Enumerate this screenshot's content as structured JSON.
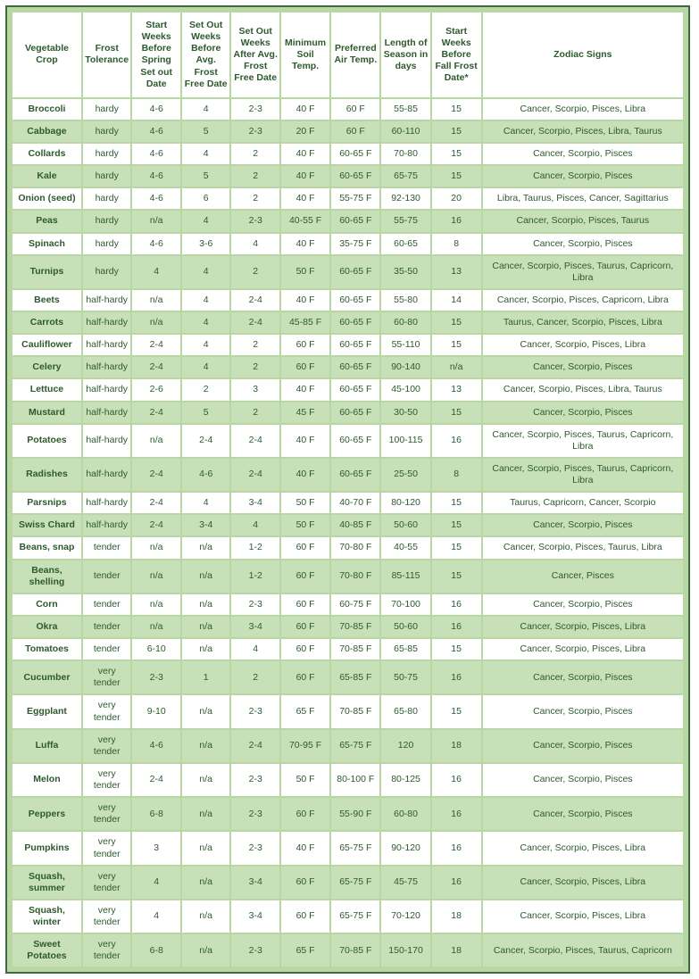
{
  "table": {
    "columns": [
      "Vegetable Crop",
      "Frost Tolerance",
      "Start Weeks Before Spring Set out Date",
      "Set Out Weeks Before Avg. Frost Free Date",
      "Set Out Weeks After Avg. Frost Free Date",
      "Minimum Soil Temp.",
      "Preferred Air Temp.",
      "Length of Season in days",
      "Start Weeks Before Fall Frost Date*",
      "Zodiac Signs"
    ],
    "column_widths_pct": [
      10.5,
      7.3,
      7.3,
      7.3,
      7.3,
      7.4,
      7.4,
      7.4,
      7.5,
      30.6
    ],
    "header_bg": "#ffffff",
    "row_bg": "#ffffff",
    "row_alt_bg": "#c8e0b8",
    "wrap_bg": "#b9d7a5",
    "border_color": "#3d6b3d",
    "text_color": "#2d5a2d",
    "font_size_pt": 8,
    "header_font_size_pt": 8,
    "rows": [
      [
        "Broccoli",
        "hardy",
        "4-6",
        "4",
        "2-3",
        "40 F",
        "60 F",
        "55-85",
        "15",
        "Cancer, Scorpio, Pisces, Libra"
      ],
      [
        "Cabbage",
        "hardy",
        "4-6",
        "5",
        "2-3",
        "20 F",
        "60 F",
        "60-110",
        "15",
        "Cancer, Scorpio, Pisces, Libra, Taurus"
      ],
      [
        "Collards",
        "hardy",
        "4-6",
        "4",
        "2",
        "40 F",
        "60-65 F",
        "70-80",
        "15",
        "Cancer, Scorpio, Pisces"
      ],
      [
        "Kale",
        "hardy",
        "4-6",
        "5",
        "2",
        "40 F",
        "60-65 F",
        "65-75",
        "15",
        "Cancer, Scorpio, Pisces"
      ],
      [
        "Onion (seed)",
        "hardy",
        "4-6",
        "6",
        "2",
        "40 F",
        "55-75 F",
        "92-130",
        "20",
        "Libra, Taurus, Pisces, Cancer, Sagittarius"
      ],
      [
        "Peas",
        "hardy",
        "n/a",
        "4",
        "2-3",
        "40-55 F",
        "60-65 F",
        "55-75",
        "16",
        "Cancer, Scorpio, Pisces, Taurus"
      ],
      [
        "Spinach",
        "hardy",
        "4-6",
        "3-6",
        "4",
        "40 F",
        "35-75 F",
        "60-65",
        "8",
        "Cancer, Scorpio, Pisces"
      ],
      [
        "Turnips",
        "hardy",
        "4",
        "4",
        "2",
        "50 F",
        "60-65 F",
        "35-50",
        "13",
        "Cancer, Scorpio, Pisces, Taurus, Capricorn, Libra"
      ],
      [
        "Beets",
        "half-hardy",
        "n/a",
        "4",
        "2-4",
        "40 F",
        "60-65 F",
        "55-80",
        "14",
        "Cancer, Scorpio, Pisces, Capricorn, Libra"
      ],
      [
        "Carrots",
        "half-hardy",
        "n/a",
        "4",
        "2-4",
        "45-85 F",
        "60-65 F",
        "60-80",
        "15",
        "Taurus, Cancer, Scorpio,  Pisces, Libra"
      ],
      [
        "Cauliflower",
        "half-hardy",
        "2-4",
        "4",
        "2",
        "60 F",
        "60-65 F",
        "55-110",
        "15",
        "Cancer, Scorpio, Pisces, Libra"
      ],
      [
        "Celery",
        "half-hardy",
        "2-4",
        "4",
        "2",
        "60 F",
        "60-65 F",
        "90-140",
        "n/a",
        "Cancer, Scorpio, Pisces"
      ],
      [
        "Lettuce",
        "half-hardy",
        "2-6",
        "2",
        "3",
        "40 F",
        "60-65 F",
        "45-100",
        "13",
        "Cancer, Scorpio, Pisces, Libra, Taurus"
      ],
      [
        "Mustard",
        "half-hardy",
        "2-4",
        "5",
        "2",
        "45 F",
        "60-65 F",
        "30-50",
        "15",
        "Cancer, Scorpio, Pisces"
      ],
      [
        "Potatoes",
        "half-hardy",
        "n/a",
        "2-4",
        "2-4",
        "40 F",
        "60-65 F",
        "100-115",
        "16",
        "Cancer, Scorpio, Pisces, Taurus, Capricorn, Libra"
      ],
      [
        "Radishes",
        "half-hardy",
        "2-4",
        "4-6",
        "2-4",
        "40 F",
        "60-65 F",
        "25-50",
        "8",
        "Cancer, Scorpio, Pisces, Taurus, Capricorn, Libra"
      ],
      [
        "Parsnips",
        "half-hardy",
        "2-4",
        "4",
        "3-4",
        "50 F",
        "40-70 F",
        "80-120",
        "15",
        "Taurus, Capricorn, Cancer, Scorpio"
      ],
      [
        "Swiss Chard",
        "half-hardy",
        "2-4",
        "3-4",
        "4",
        "50 F",
        "40-85 F",
        "50-60",
        "15",
        "Cancer, Scorpio, Pisces"
      ],
      [
        "Beans, snap",
        "tender",
        "n/a",
        "n/a",
        "1-2",
        "60 F",
        "70-80 F",
        "40-55",
        "15",
        "Cancer, Scorpio, Pisces, Taurus,  Libra"
      ],
      [
        "Beans, shelling",
        "tender",
        "n/a",
        "n/a",
        "1-2",
        "60 F",
        "70-80 F",
        "85-115",
        "15",
        "Cancer, Pisces"
      ],
      [
        "Corn",
        "tender",
        "n/a",
        "n/a",
        "2-3",
        "60 F",
        "60-75 F",
        "70-100",
        "16",
        "Cancer, Scorpio, Pisces"
      ],
      [
        "Okra",
        "tender",
        "n/a",
        "n/a",
        "3-4",
        "60 F",
        "70-85 F",
        "50-60",
        "16",
        "Cancer, Scorpio, Pisces, Libra"
      ],
      [
        "Tomatoes",
        "tender",
        "6-10",
        "n/a",
        "4",
        "60 F",
        "70-85 F",
        "65-85",
        "15",
        "Cancer, Scorpio, Pisces, Libra"
      ],
      [
        "Cucumber",
        "very tender",
        "2-3",
        "1",
        "2",
        "60 F",
        "65-85 F",
        "50-75",
        "16",
        "Cancer, Scorpio, Pisces"
      ],
      [
        "Eggplant",
        "very tender",
        "9-10",
        "n/a",
        "2-3",
        "65 F",
        "70-85 F",
        "65-80",
        "15",
        "Cancer, Scorpio, Pisces"
      ],
      [
        "Luffa",
        "very tender",
        "4-6",
        "n/a",
        "2-4",
        "70-95 F",
        "65-75 F",
        "120",
        "18",
        "Cancer, Scorpio, Pisces"
      ],
      [
        "Melon",
        "very tender",
        "2-4",
        "n/a",
        "2-3",
        "50 F",
        "80-100 F",
        "80-125",
        "16",
        "Cancer, Scorpio, Pisces"
      ],
      [
        "Peppers",
        "very tender",
        "6-8",
        "n/a",
        "2-3",
        "60 F",
        "55-90 F",
        "60-80",
        "16",
        "Cancer, Scorpio, Pisces"
      ],
      [
        "Pumpkins",
        "very tender",
        "3",
        "n/a",
        "2-3",
        "40 F",
        "65-75 F",
        "90-120",
        "16",
        "Cancer, Scorpio, Pisces, Libra"
      ],
      [
        "Squash, summer",
        "very tender",
        "4",
        "n/a",
        "3-4",
        "60 F",
        "65-75 F",
        "45-75",
        "16",
        "Cancer, Scorpio, Pisces, Libra"
      ],
      [
        "Squash, winter",
        "very tender",
        "4",
        "n/a",
        "3-4",
        "60 F",
        "65-75 F",
        "70-120",
        "18",
        "Cancer, Scorpio, Pisces, Libra"
      ],
      [
        "Sweet Potatoes",
        "very tender",
        "6-8",
        "n/a",
        "2-3",
        "65 F",
        "70-85 F",
        "150-170",
        "18",
        "Cancer, Scorpio, Pisces, Taurus, Capricorn"
      ]
    ]
  }
}
